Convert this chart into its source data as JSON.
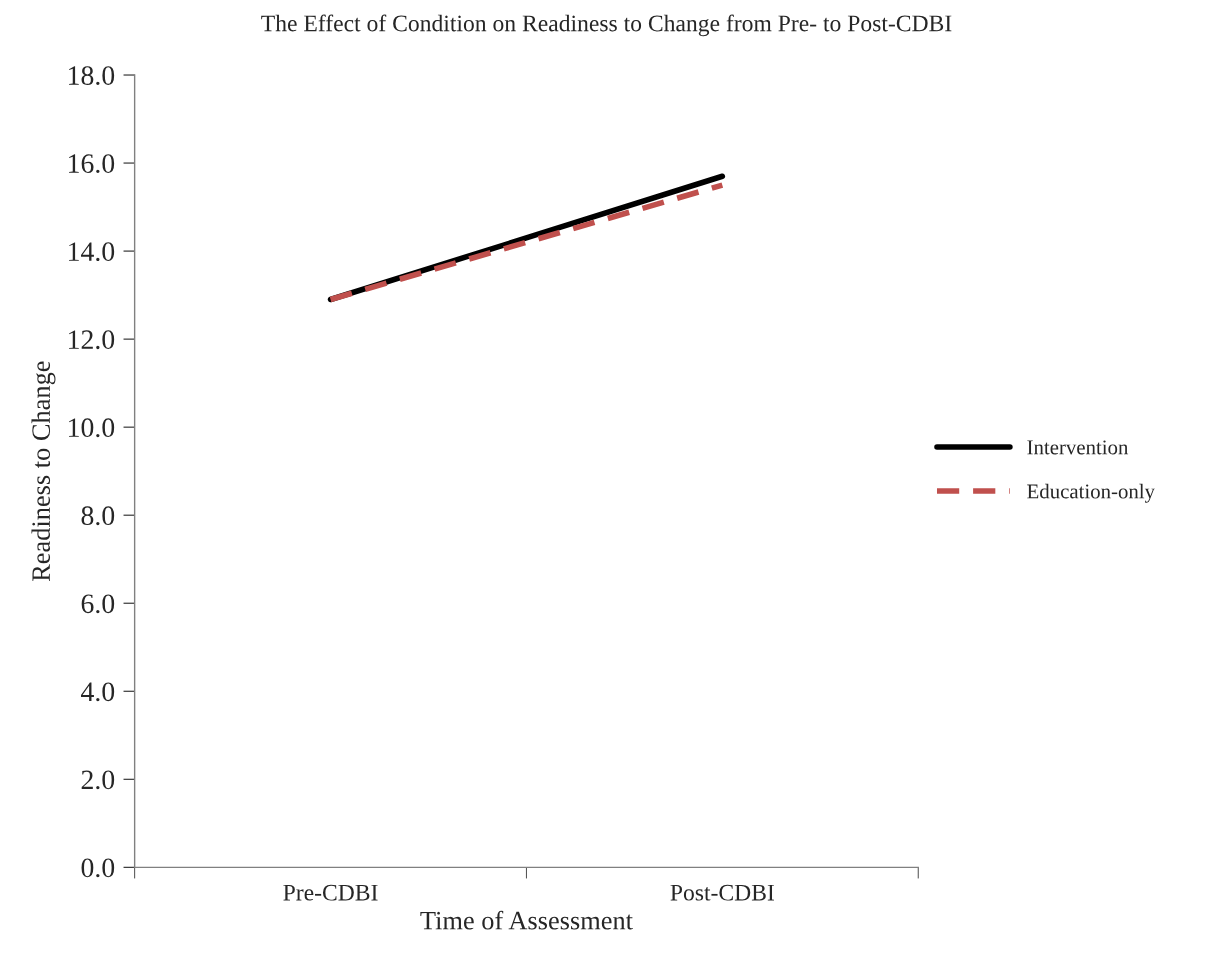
{
  "chart_data": {
    "type": "line",
    "title": "The Effect of Condition on Readiness to Change from Pre- to Post-CDBI",
    "xlabel": "Time of Assessment",
    "ylabel": "Readiness to Change",
    "categories": [
      "Pre-CDBI",
      "Post-CDBI"
    ],
    "series": [
      {
        "name": "Intervention",
        "color": "#000000",
        "values": [
          12.9,
          15.7
        ],
        "line_style": "solid"
      },
      {
        "name": "Education-only",
        "color": "#c0504d",
        "values": [
          12.9,
          15.5
        ],
        "line_style": "dashed"
      }
    ],
    "ylim": [
      0,
      18
    ],
    "yticks": [
      {
        "value": 0,
        "label": "0.0"
      },
      {
        "value": 2,
        "label": "2.0"
      },
      {
        "value": 4,
        "label": "4.0"
      },
      {
        "value": 6,
        "label": "6.0"
      },
      {
        "value": 8,
        "label": "8.0"
      },
      {
        "value": 10,
        "label": "10.0"
      },
      {
        "value": 12,
        "label": "12.0"
      },
      {
        "value": 14,
        "label": "14.0"
      },
      {
        "value": 16,
        "label": "16.0"
      },
      {
        "value": 18,
        "label": "18.0"
      }
    ],
    "grid": false,
    "legend": "right",
    "marker": "none"
  }
}
